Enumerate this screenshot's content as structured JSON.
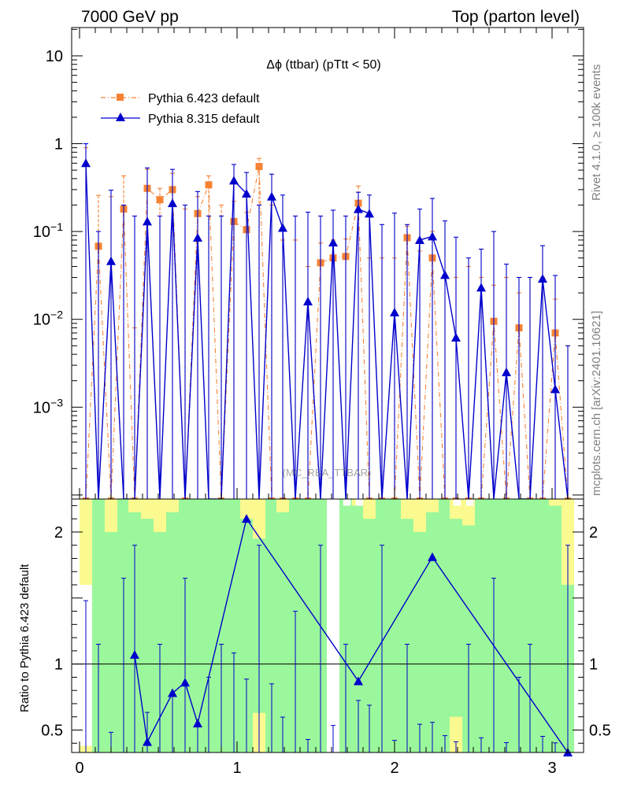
{
  "header": {
    "left": "7000 GeV pp",
    "right": "Top (parton level)"
  },
  "side_text": {
    "rivet": "Rivet 4.1.0, ≥ 100k events",
    "mcplots": "mcplots.cern.ch [arXiv:2401.10621]"
  },
  "chart_data": {
    "type": "line",
    "title": "Δϕ (ttbar) (pTtt < 50)",
    "watermark": "(MC_REA_TTBAR)",
    "xlabel": "",
    "ylabel_ratio": "Ratio to Pythia 6.423 default",
    "xlim": [
      -0.05,
      3.2
    ],
    "ylim_main": [
      9e-05,
      21
    ],
    "ylim_ratio": [
      0.33,
      2.25
    ],
    "y_ticks_main": [
      {
        "value": 10,
        "label": "10"
      },
      {
        "value": 1,
        "label": "1"
      },
      {
        "value": 0.1,
        "base": "10",
        "exp": "−1"
      },
      {
        "value": 0.01,
        "base": "10",
        "exp": "−2"
      },
      {
        "value": 0.001,
        "base": "10",
        "exp": "−3"
      }
    ],
    "y_ticks_ratio": [
      {
        "value": 2,
        "label": "2"
      },
      {
        "value": 1,
        "label": "1"
      },
      {
        "value": 0.5,
        "label": "0.5"
      }
    ],
    "x_ticks": [
      {
        "value": 0,
        "label": "0"
      },
      {
        "value": 1,
        "label": "1"
      },
      {
        "value": 2,
        "label": "2"
      },
      {
        "value": 3,
        "label": "3"
      }
    ],
    "legend": [
      {
        "name": "Pythia 6.423 default",
        "color": "#f58233",
        "marker": "square",
        "dash": "dashdot"
      },
      {
        "name": "Pythia 8.315 default",
        "color": "#0000cc",
        "marker": "triangle",
        "dash": "solid"
      }
    ],
    "x_centers": [
      0.04,
      0.12,
      0.2,
      0.28,
      0.35,
      0.43,
      0.51,
      0.59,
      0.67,
      0.75,
      0.82,
      0.9,
      0.98,
      1.06,
      1.14,
      1.22,
      1.29,
      1.37,
      1.45,
      1.53,
      1.61,
      1.69,
      1.77,
      1.84,
      1.92,
      2.0,
      2.08,
      2.16,
      2.24,
      2.32,
      2.39,
      2.47,
      2.55,
      2.63,
      2.71,
      2.79,
      2.86,
      2.94,
      3.02,
      3.1
    ],
    "series": [
      {
        "name": "Pythia 6.423 default",
        "color": "#f58233",
        "values": [
          0,
          0.068,
          0,
          0.18,
          0,
          0.31,
          0.23,
          0.3,
          0,
          0.16,
          0.34,
          0,
          0.13,
          0.105,
          0.55,
          0,
          0,
          0,
          0,
          0.044,
          0.05,
          0.052,
          0.21,
          0,
          0,
          0,
          0.085,
          0,
          0.05,
          0,
          0,
          0,
          0,
          0.0095,
          0,
          0.008,
          0,
          0,
          0.007,
          0
        ],
        "err_up": [
          0.9,
          0.19,
          0.25,
          0.25,
          0.008,
          0.2,
          0.08,
          0.16,
          0.18,
          0.09,
          0.09,
          0.2,
          0.09,
          0.06,
          0.13,
          0.2,
          0.08,
          0.08,
          0.04,
          0.03,
          0.03,
          0.03,
          0.12,
          0.05,
          0.05,
          0.05,
          0.03,
          0.06,
          0.05,
          0.03,
          0.03,
          0.04,
          0.03,
          0.015,
          0.03,
          0.012,
          0.03,
          0.03,
          0.01,
          0.005
        ]
      },
      {
        "name": "Pythia 8.315 default",
        "color": "#0000cc",
        "values": [
          0.6,
          0,
          0.046,
          0,
          0,
          0.13,
          0,
          0.21,
          0,
          0.085,
          0,
          0,
          0.38,
          0.27,
          0,
          0.25,
          0.11,
          0,
          0.016,
          0,
          0.075,
          0,
          0.18,
          0.16,
          0,
          0.012,
          0,
          0.08,
          0.088,
          0.032,
          0.0062,
          0,
          0.023,
          0,
          0.0025,
          0,
          0,
          0.029,
          0.0016,
          0
        ],
        "err_up": [
          0.4,
          0.1,
          0.25,
          0.2,
          0.15,
          0.4,
          0.15,
          0.3,
          0.2,
          0.2,
          0.15,
          0.15,
          0.2,
          0.2,
          0.2,
          0.2,
          0.15,
          0.15,
          0.15,
          0.15,
          0.1,
          0.15,
          0.1,
          0.1,
          0.12,
          0.15,
          0.12,
          0.1,
          0.15,
          0.1,
          0.08,
          0.05,
          0.04,
          0.1,
          0.04,
          0.03,
          0.03,
          0.04,
          0.03,
          0.005
        ]
      }
    ],
    "ratio_series": {
      "name": "Pythia 8.315 / Pythia 6.423",
      "x": [
        0.35,
        0.43,
        0.59,
        0.67,
        0.75,
        1.06,
        1.77,
        2.24,
        3.1
      ],
      "values": [
        1.07,
        0.41,
        0.78,
        0.86,
        0.55,
        2.1,
        0.87,
        1.81,
        0.33
      ]
    },
    "ratio_bands": {
      "green": [
        [
          0.0,
          0.3
        ],
        [
          0.0,
          2.3
        ],
        [
          0.0,
          2.3
        ],
        [
          0.0,
          2.3
        ],
        [
          0.33,
          2.3
        ],
        [
          0.0,
          2.3
        ],
        [
          0.0,
          2.3
        ],
        [
          0.0,
          2.3
        ],
        [
          0.0,
          2.3
        ],
        [
          0.0,
          2.3
        ],
        [
          0.0,
          2.3
        ],
        [
          0.0,
          2.3
        ],
        [
          0.0,
          2.3
        ],
        [
          0.0,
          2.3
        ],
        [
          0.0,
          2.3
        ],
        [
          0.0,
          2.3
        ],
        [
          0.0,
          2.3
        ],
        [
          0.0,
          2.3
        ],
        [
          0.0,
          2.3
        ],
        [
          0.0,
          2.3
        ],
        null,
        [
          0.0,
          2.3
        ],
        [
          0.0,
          2.3
        ],
        [
          0.0,
          2.3
        ],
        [
          0.0,
          2.3
        ],
        [
          0.0,
          2.3
        ],
        [
          0.0,
          2.3
        ],
        [
          0.0,
          2.3
        ],
        [
          0.0,
          2.3
        ],
        [
          0.0,
          2.3
        ],
        [
          0.0,
          2.3
        ],
        [
          0.0,
          2.3
        ],
        [
          0.0,
          2.3
        ],
        [
          0.0,
          2.3
        ],
        [
          0.0,
          2.3
        ],
        [
          0.0,
          2.3
        ],
        [
          0.0,
          2.3
        ],
        [
          0.0,
          2.3
        ],
        [
          0.0,
          2.3
        ],
        [
          0.0,
          2.3
        ]
      ],
      "yellow_top": [
        1.6,
        2.3,
        2.0,
        2.3,
        2.15,
        2.1,
        2.0,
        2.15,
        2.3,
        2.3,
        2.25,
        2.3,
        2.3,
        2.1,
        1.95,
        2.3,
        2.15,
        2.3,
        2.25,
        2.3,
        null,
        2.3,
        2.2,
        2.1,
        2.3,
        2.3,
        2.1,
        2.0,
        2.15,
        2.3,
        2.1,
        2.05,
        2.3,
        2.25,
        2.3,
        2.3,
        2.3,
        2.3,
        2.2,
        1.6
      ],
      "white_top": [
        null,
        null,
        null,
        null,
        null,
        null,
        null,
        null,
        null,
        null,
        null,
        null,
        null,
        null,
        null,
        null,
        null,
        null,
        null,
        null,
        null,
        2.3,
        2.3,
        null,
        null,
        null,
        null,
        null,
        null,
        null,
        2.3,
        2.3,
        null,
        null,
        null,
        null,
        null,
        null,
        null,
        null
      ],
      "yellow_bottom": [
        0.38,
        null,
        null,
        null,
        null,
        null,
        null,
        null,
        null,
        null,
        null,
        null,
        null,
        null,
        0.63,
        null,
        null,
        null,
        null,
        null,
        null,
        null,
        null,
        null,
        null,
        null,
        null,
        null,
        null,
        null,
        0.6,
        null,
        null,
        null,
        null,
        null,
        null,
        null,
        null,
        null
      ]
    }
  }
}
